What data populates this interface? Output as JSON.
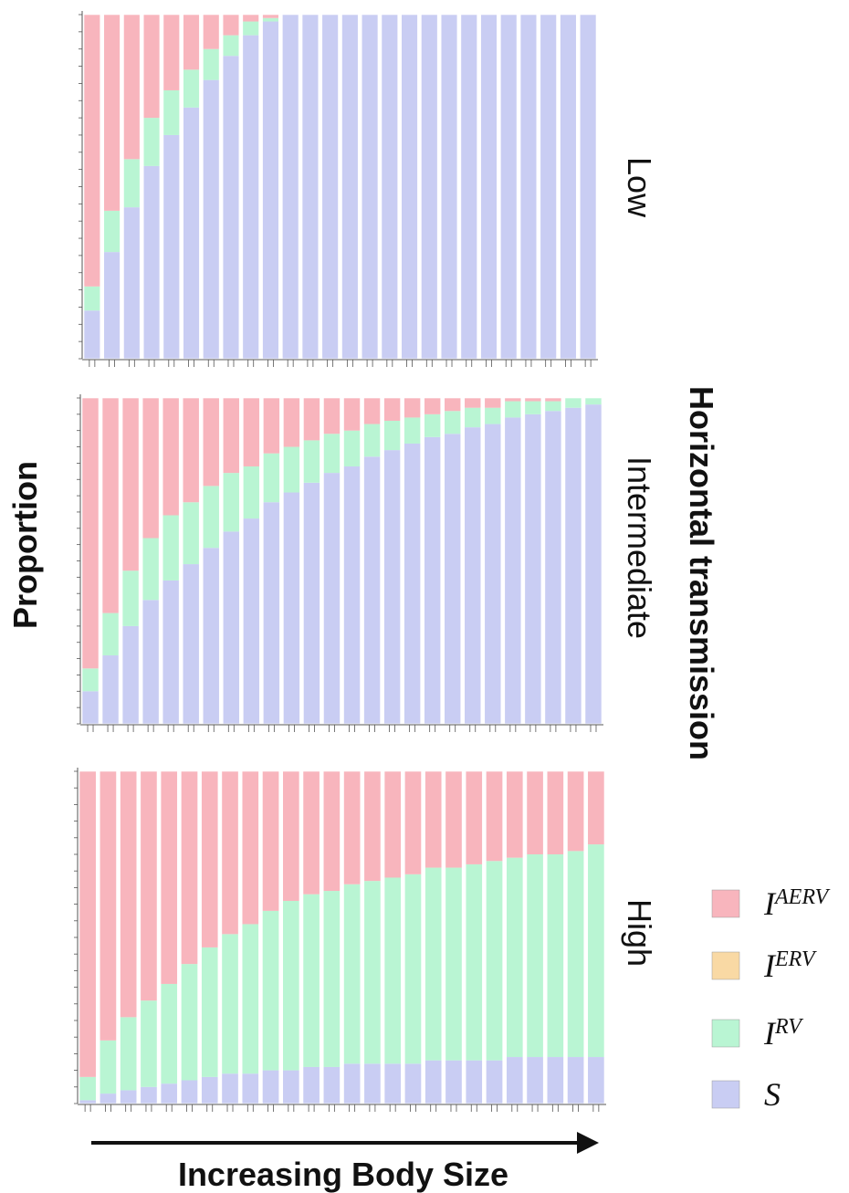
{
  "axes": {
    "y_title": "Proportion",
    "x_title": "Increasing Body Size",
    "panel_group_title": "Horizontal transmission"
  },
  "colors": {
    "S": "#c9cdf3",
    "I_RV": "#b9f5d3",
    "I_ERV": "#f9d9a4",
    "I_AERV": "#f8b5bd"
  },
  "legend": [
    {
      "key": "I_AERV",
      "base": "I",
      "sup": "AERV"
    },
    {
      "key": "I_ERV",
      "base": "I",
      "sup": "ERV"
    },
    {
      "key": "I_RV",
      "base": "I",
      "sup": "RV"
    },
    {
      "key": "S",
      "base": "S",
      "sup": ""
    }
  ],
  "chart_data": [
    {
      "type": "bar",
      "stacked": true,
      "panel": "Low",
      "ylim": [
        0,
        1
      ],
      "series": [
        {
          "key": "S",
          "values": [
            0.14,
            0.31,
            0.44,
            0.56,
            0.65,
            0.73,
            0.81,
            0.88,
            0.94,
            0.98,
            1,
            1,
            1,
            1,
            1,
            1,
            1,
            1,
            1,
            1,
            1,
            1,
            1,
            1,
            1,
            1
          ]
        },
        {
          "key": "I_RV",
          "values": [
            0.07,
            0.12,
            0.14,
            0.14,
            0.13,
            0.11,
            0.09,
            0.06,
            0.04,
            0.01,
            0,
            0,
            0,
            0,
            0,
            0,
            0,
            0,
            0,
            0,
            0,
            0,
            0,
            0,
            0,
            0
          ]
        },
        {
          "key": "I_ERV",
          "values": [
            0,
            0,
            0,
            0,
            0,
            0,
            0,
            0,
            0,
            0,
            0,
            0,
            0,
            0,
            0,
            0,
            0,
            0,
            0,
            0,
            0,
            0,
            0,
            0,
            0,
            0
          ]
        },
        {
          "key": "I_AERV",
          "values": [
            0.79,
            0.57,
            0.42,
            0.3,
            0.22,
            0.16,
            0.1,
            0.06,
            0.02,
            0.01,
            0,
            0,
            0,
            0,
            0,
            0,
            0,
            0,
            0,
            0,
            0,
            0,
            0,
            0,
            0,
            0
          ]
        }
      ]
    },
    {
      "type": "bar",
      "stacked": true,
      "panel": "Intermediate",
      "ylim": [
        0,
        1
      ],
      "series": [
        {
          "key": "S",
          "values": [
            0.1,
            0.21,
            0.3,
            0.38,
            0.44,
            0.49,
            0.54,
            0.59,
            0.63,
            0.68,
            0.71,
            0.74,
            0.77,
            0.79,
            0.82,
            0.84,
            0.86,
            0.88,
            0.89,
            0.91,
            0.92,
            0.94,
            0.95,
            0.96,
            0.97,
            0.98
          ]
        },
        {
          "key": "I_RV",
          "values": [
            0.07,
            0.13,
            0.17,
            0.19,
            0.2,
            0.19,
            0.19,
            0.18,
            0.16,
            0.15,
            0.14,
            0.13,
            0.12,
            0.11,
            0.1,
            0.09,
            0.08,
            0.07,
            0.07,
            0.06,
            0.05,
            0.05,
            0.04,
            0.03,
            0.03,
            0.02
          ]
        },
        {
          "key": "I_ERV",
          "values": [
            0,
            0,
            0,
            0,
            0,
            0,
            0,
            0,
            0,
            0,
            0,
            0,
            0,
            0,
            0,
            0,
            0,
            0,
            0,
            0,
            0,
            0,
            0,
            0,
            0,
            0
          ]
        },
        {
          "key": "I_AERV",
          "values": [
            0.83,
            0.66,
            0.53,
            0.43,
            0.36,
            0.32,
            0.27,
            0.23,
            0.21,
            0.17,
            0.15,
            0.13,
            0.11,
            0.1,
            0.08,
            0.07,
            0.06,
            0.05,
            0.04,
            0.03,
            0.03,
            0.01,
            0.01,
            0.01,
            0.0,
            0.0
          ]
        }
      ]
    },
    {
      "type": "bar",
      "stacked": true,
      "panel": "High",
      "ylim": [
        0,
        1
      ],
      "series": [
        {
          "key": "S",
          "values": [
            0.01,
            0.03,
            0.04,
            0.05,
            0.06,
            0.07,
            0.08,
            0.09,
            0.09,
            0.1,
            0.1,
            0.11,
            0.11,
            0.12,
            0.12,
            0.12,
            0.12,
            0.13,
            0.13,
            0.13,
            0.13,
            0.14,
            0.14,
            0.14,
            0.14,
            0.14
          ]
        },
        {
          "key": "I_RV",
          "values": [
            0.07,
            0.16,
            0.22,
            0.26,
            0.3,
            0.35,
            0.39,
            0.42,
            0.45,
            0.48,
            0.51,
            0.52,
            0.53,
            0.54,
            0.55,
            0.56,
            0.57,
            0.58,
            0.58,
            0.59,
            0.6,
            0.6,
            0.61,
            0.61,
            0.62,
            0.64
          ]
        },
        {
          "key": "I_ERV",
          "values": [
            0,
            0,
            0,
            0,
            0,
            0,
            0,
            0,
            0,
            0,
            0,
            0,
            0,
            0,
            0,
            0,
            0,
            0,
            0,
            0,
            0,
            0,
            0,
            0,
            0,
            0
          ]
        },
        {
          "key": "I_AERV",
          "values": [
            0.92,
            0.81,
            0.74,
            0.69,
            0.64,
            0.58,
            0.53,
            0.49,
            0.46,
            0.42,
            0.39,
            0.37,
            0.36,
            0.34,
            0.33,
            0.32,
            0.31,
            0.29,
            0.29,
            0.28,
            0.27,
            0.26,
            0.25,
            0.25,
            0.24,
            0.22
          ]
        }
      ]
    }
  ]
}
